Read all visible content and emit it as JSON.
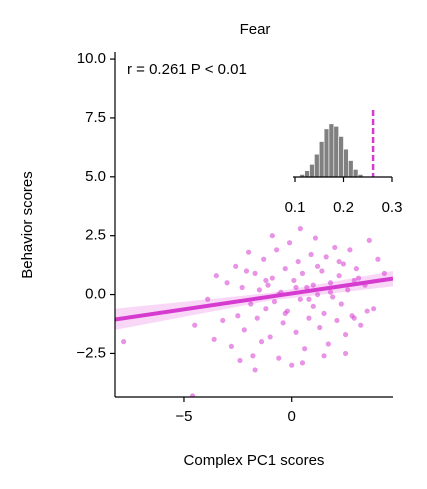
{
  "chart_data": {
    "type": "scatter",
    "title": "Fear",
    "annotation": "r = 0.261   P < 0.01",
    "x_label": "Complex PC1 scores",
    "y_label": "Behavior scores",
    "xlim": [
      -8.2,
      4.7
    ],
    "ylim": [
      -4.35,
      10.3
    ],
    "xticks": [
      {
        "value": -5,
        "label": "−5"
      },
      0
    ],
    "yticks": [
      {
        "value": -2.5,
        "label": "−2.5"
      },
      {
        "value": 0,
        "label": "0.0"
      },
      2.5,
      {
        "value": 5,
        "label": "5.0"
      },
      7.5,
      {
        "value": 10,
        "label": "10.0"
      }
    ],
    "color": "#d63bd0",
    "x": [
      -7.8,
      -4.6,
      -3.9,
      -3.5,
      -3.2,
      -3.0,
      -2.8,
      -2.6,
      -2.5,
      -2.3,
      -2.2,
      -2.0,
      -1.9,
      -1.8,
      -1.7,
      -1.6,
      -1.5,
      -1.4,
      -1.3,
      -1.2,
      -1.1,
      -1.0,
      -0.9,
      -0.8,
      -0.7,
      -0.6,
      -0.5,
      -0.4,
      -0.3,
      -0.2,
      -0.1,
      0.0,
      0.1,
      0.2,
      0.3,
      0.4,
      0.5,
      0.6,
      0.7,
      0.8,
      0.9,
      1.0,
      1.1,
      1.2,
      1.3,
      1.4,
      1.5,
      1.6,
      1.7,
      1.8,
      1.9,
      2.0,
      2.1,
      2.2,
      2.3,
      2.4,
      2.5,
      2.6,
      2.7,
      2.8,
      2.9,
      3.0,
      3.2,
      3.4,
      3.6,
      3.8,
      4.0,
      4.3,
      -2.4,
      -1.7,
      -0.9,
      -0.3,
      0.5,
      1.2,
      1.8,
      2.5,
      3.1,
      -3.6,
      -1.2,
      0.8,
      1.5,
      2.2,
      0.2,
      -0.6,
      3.5,
      -2.1,
      1.0,
      -4.5,
      0.4,
      2.9
    ],
    "y": [
      -2.0,
      -4.3,
      -0.2,
      0.8,
      -1.1,
      0.5,
      -2.2,
      1.2,
      -0.9,
      0.3,
      -1.5,
      1.8,
      -0.4,
      -2.6,
      0.9,
      -1.0,
      0.2,
      -2.0,
      1.5,
      -0.6,
      0.4,
      -1.8,
      0.7,
      -0.3,
      1.9,
      -2.7,
      0.1,
      -1.2,
      1.1,
      -0.7,
      2.2,
      -3.0,
      0.6,
      -1.6,
      1.4,
      -0.2,
      0.9,
      -2.3,
      0.3,
      -1.0,
      1.7,
      -0.5,
      2.4,
      0.0,
      -1.4,
      1.0,
      -0.8,
      1.6,
      -2.1,
      0.5,
      -0.1,
      2.0,
      -1.1,
      0.8,
      -0.4,
      1.3,
      -2.5,
      0.2,
      1.9,
      -0.9,
      0.6,
      1.1,
      -1.3,
      0.4,
      2.3,
      -0.6,
      1.5,
      0.9,
      -2.8,
      -3.2,
      2.5,
      -0.8,
      -2.9,
      1.2,
      0.1,
      -1.7,
      0.7,
      -1.9,
      0.6,
      -0.2,
      -2.6,
      1.4,
      0.3,
      0.0,
      -0.7,
      1.0,
      0.4,
      -1.3,
      2.8,
      -1.0
    ],
    "fit": {
      "x": [
        -8.2,
        4.7
      ],
      "y": [
        -1.06,
        0.68
      ],
      "band_x": [
        -8.2,
        -1,
        4.7
      ],
      "band_lower": [
        -1.5,
        -0.25,
        0.35
      ],
      "band_upper": [
        -0.6,
        0.07,
        1.0
      ],
      "color": "#d63bd0",
      "band_color": "#f6c8f3"
    },
    "inset": {
      "type": "histogram",
      "bins": [
        0.11,
        0.12,
        0.13,
        0.14,
        0.15,
        0.16,
        0.17,
        0.18,
        0.19,
        0.2,
        0.21,
        0.22,
        0.23,
        0.24
      ],
      "counts": [
        2,
        5,
        10,
        18,
        28,
        38,
        42,
        40,
        32,
        22,
        13,
        6,
        2
      ],
      "xlim": [
        0.1,
        0.3
      ],
      "ylim": [
        0,
        45
      ],
      "xticks": [
        0.1,
        0.2,
        0.3
      ],
      "marker_x": 0.261,
      "color": "#808080",
      "marker_color": "#d63bd0"
    }
  }
}
